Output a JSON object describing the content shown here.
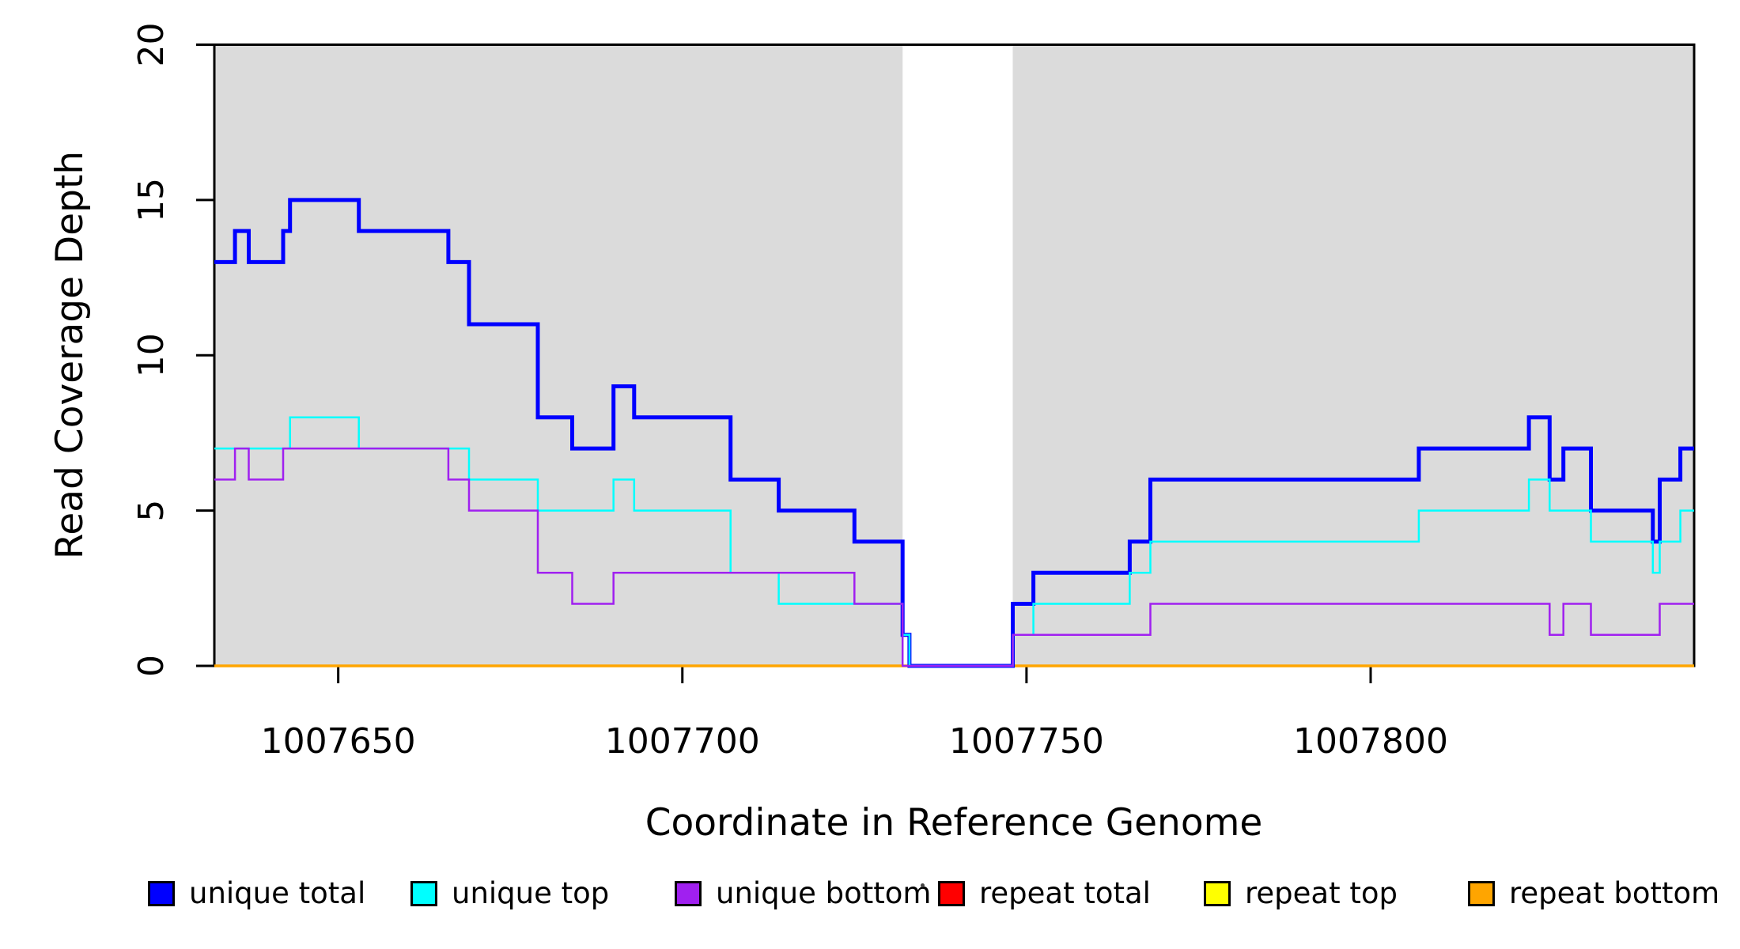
{
  "window": {
    "background": "#FFFFFF"
  },
  "chart_data": {
    "type": "line",
    "subtype": "step-after",
    "title": "",
    "xlabel": "Coordinate in Reference Genome",
    "ylabel": "Read Coverage Depth",
    "xlim": [
      1007632,
      1007847
    ],
    "ylim": [
      0,
      20
    ],
    "grid": false,
    "axis_color": "#000000",
    "shaded_color": "#DBDBDB",
    "shaded_regions": [
      {
        "x0": 1007632,
        "x1": 1007732
      },
      {
        "x0": 1007748,
        "x1": 1007847
      }
    ],
    "xticks": [
      {
        "coord": 1007650,
        "label": "1007650"
      },
      {
        "coord": 1007700,
        "label": "1007700"
      },
      {
        "coord": 1007750,
        "label": "1007750"
      },
      {
        "coord": 1007800,
        "label": "1007800"
      }
    ],
    "yticks": [
      {
        "value": 0,
        "label": "0"
      },
      {
        "value": 5,
        "label": "5"
      },
      {
        "value": 10,
        "label": "10"
      },
      {
        "value": 15,
        "label": "15"
      },
      {
        "value": 20,
        "label": "20"
      }
    ],
    "x_end": 1007847,
    "series": [
      {
        "name": "repeat total",
        "color": "#FF0000",
        "stroke_width": 2.5,
        "steps": [
          [
            1007632,
            0
          ]
        ]
      },
      {
        "name": "repeat top",
        "color": "#FFFF00",
        "stroke_width": 2.5,
        "steps": [
          [
            1007632,
            0
          ]
        ]
      },
      {
        "name": "repeat bottom",
        "color": "#FFA500",
        "stroke_width": 3.5,
        "steps": [
          [
            1007632,
            0
          ]
        ]
      },
      {
        "name": "unique total",
        "color": "#0000FF",
        "stroke_width": 5,
        "steps": [
          [
            1007632,
            13
          ],
          [
            1007635,
            14
          ],
          [
            1007637,
            13
          ],
          [
            1007642,
            14
          ],
          [
            1007643,
            15
          ],
          [
            1007653,
            14
          ],
          [
            1007666,
            13
          ],
          [
            1007669,
            11
          ],
          [
            1007679,
            8
          ],
          [
            1007684,
            7
          ],
          [
            1007690,
            9
          ],
          [
            1007693,
            8
          ],
          [
            1007707,
            6
          ],
          [
            1007714,
            5
          ],
          [
            1007725,
            4
          ],
          [
            1007732,
            1
          ],
          [
            1007733,
            0
          ],
          [
            1007748,
            2
          ],
          [
            1007751,
            3
          ],
          [
            1007765,
            4
          ],
          [
            1007768,
            6
          ],
          [
            1007807,
            7
          ],
          [
            1007823,
            8
          ],
          [
            1007826,
            6
          ],
          [
            1007828,
            7
          ],
          [
            1007832,
            5
          ],
          [
            1007841,
            4
          ],
          [
            1007842,
            6
          ],
          [
            1007845,
            7
          ]
        ]
      },
      {
        "name": "unique top",
        "color": "#00FFFF",
        "stroke_width": 2.5,
        "steps": [
          [
            1007632,
            7
          ],
          [
            1007643,
            8
          ],
          [
            1007653,
            7
          ],
          [
            1007669,
            6
          ],
          [
            1007679,
            5
          ],
          [
            1007690,
            6
          ],
          [
            1007693,
            5
          ],
          [
            1007707,
            3
          ],
          [
            1007714,
            2
          ],
          [
            1007732,
            1
          ],
          [
            1007733,
            0
          ],
          [
            1007748,
            1
          ],
          [
            1007751,
            2
          ],
          [
            1007765,
            3
          ],
          [
            1007768,
            4
          ],
          [
            1007807,
            5
          ],
          [
            1007823,
            6
          ],
          [
            1007826,
            5
          ],
          [
            1007832,
            4
          ],
          [
            1007841,
            3
          ],
          [
            1007842,
            4
          ],
          [
            1007845,
            5
          ]
        ]
      },
      {
        "name": "unique bottom",
        "color": "#A020F0",
        "stroke_width": 2.5,
        "steps": [
          [
            1007632,
            6
          ],
          [
            1007635,
            7
          ],
          [
            1007637,
            6
          ],
          [
            1007642,
            7
          ],
          [
            1007666,
            6
          ],
          [
            1007669,
            5
          ],
          [
            1007679,
            3
          ],
          [
            1007684,
            2
          ],
          [
            1007690,
            3
          ],
          [
            1007725,
            2
          ],
          [
            1007732,
            0
          ],
          [
            1007748,
            1
          ],
          [
            1007768,
            2
          ],
          [
            1007826,
            1
          ],
          [
            1007828,
            2
          ],
          [
            1007832,
            1
          ],
          [
            1007842,
            2
          ]
        ]
      }
    ],
    "legend_position": "bottom"
  },
  "legend": {
    "entries": [
      {
        "label": "unique total",
        "color": "#0000FF"
      },
      {
        "label": "unique top",
        "color": "#00FFFF"
      },
      {
        "label": "unique bottom",
        "color": "#A020F0"
      },
      {
        "label": "repeat total",
        "color": "#FF0000"
      },
      {
        "label": "repeat top",
        "color": "#FFFF00"
      },
      {
        "label": "repeat bottom",
        "color": "#FFA500"
      }
    ]
  }
}
